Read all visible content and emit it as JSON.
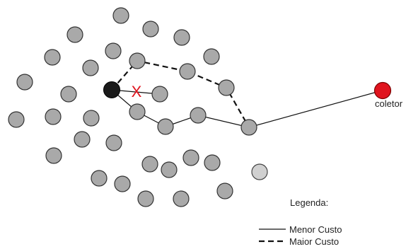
{
  "diagram": {
    "collector_label": "coletor",
    "legend_title": "Legenda:",
    "legend_solid": "Menor Custo",
    "legend_dashed": "Maior Custo",
    "blocked_mark": "X",
    "colors": {
      "node_fill": "#a9a9a9",
      "source_fill": "#1a1a1a",
      "collector_fill": "#e0141e",
      "blocked_mark": "#e0141e",
      "light_node_fill": "#d0d0d0"
    }
  }
}
